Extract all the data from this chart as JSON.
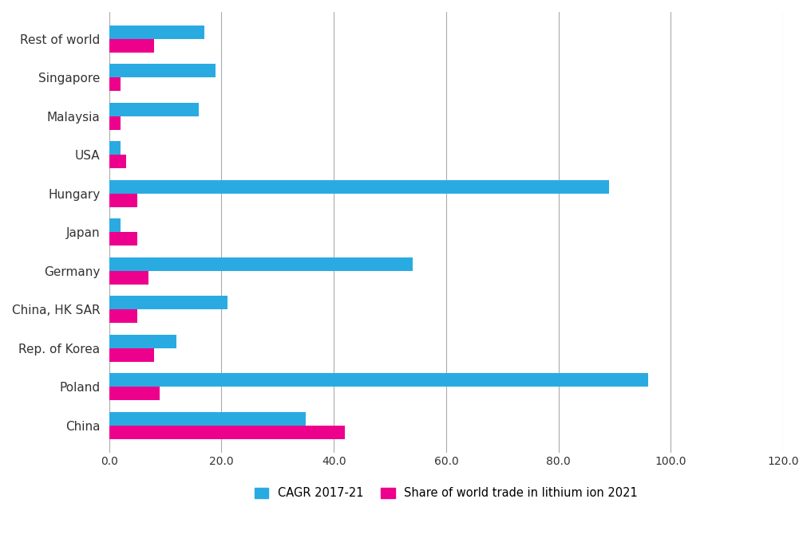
{
  "categories": [
    "China",
    "Poland",
    "Rep. of Korea",
    "China, HK SAR",
    "Germany",
    "Japan",
    "Hungary",
    "USA",
    "Malaysia",
    "Singapore",
    "Rest of world"
  ],
  "cagr": [
    35.0,
    96.0,
    12.0,
    21.0,
    54.0,
    2.0,
    89.0,
    2.0,
    16.0,
    19.0,
    17.0
  ],
  "share": [
    42.0,
    9.0,
    8.0,
    5.0,
    7.0,
    5.0,
    5.0,
    3.0,
    2.0,
    2.0,
    8.0
  ],
  "cagr_color": "#29ABE2",
  "share_color": "#EC008C",
  "background_color": "#FFFFFF",
  "xlim": [
    0,
    120.0
  ],
  "xticks": [
    0.0,
    20.0,
    40.0,
    60.0,
    80.0,
    100.0,
    120.0
  ],
  "legend_cagr": "CAGR 2017-21",
  "legend_share": "Share of world trade in lithium ion 2021",
  "bar_height": 0.35,
  "figsize": [
    10.16,
    6.85
  ],
  "dpi": 100
}
